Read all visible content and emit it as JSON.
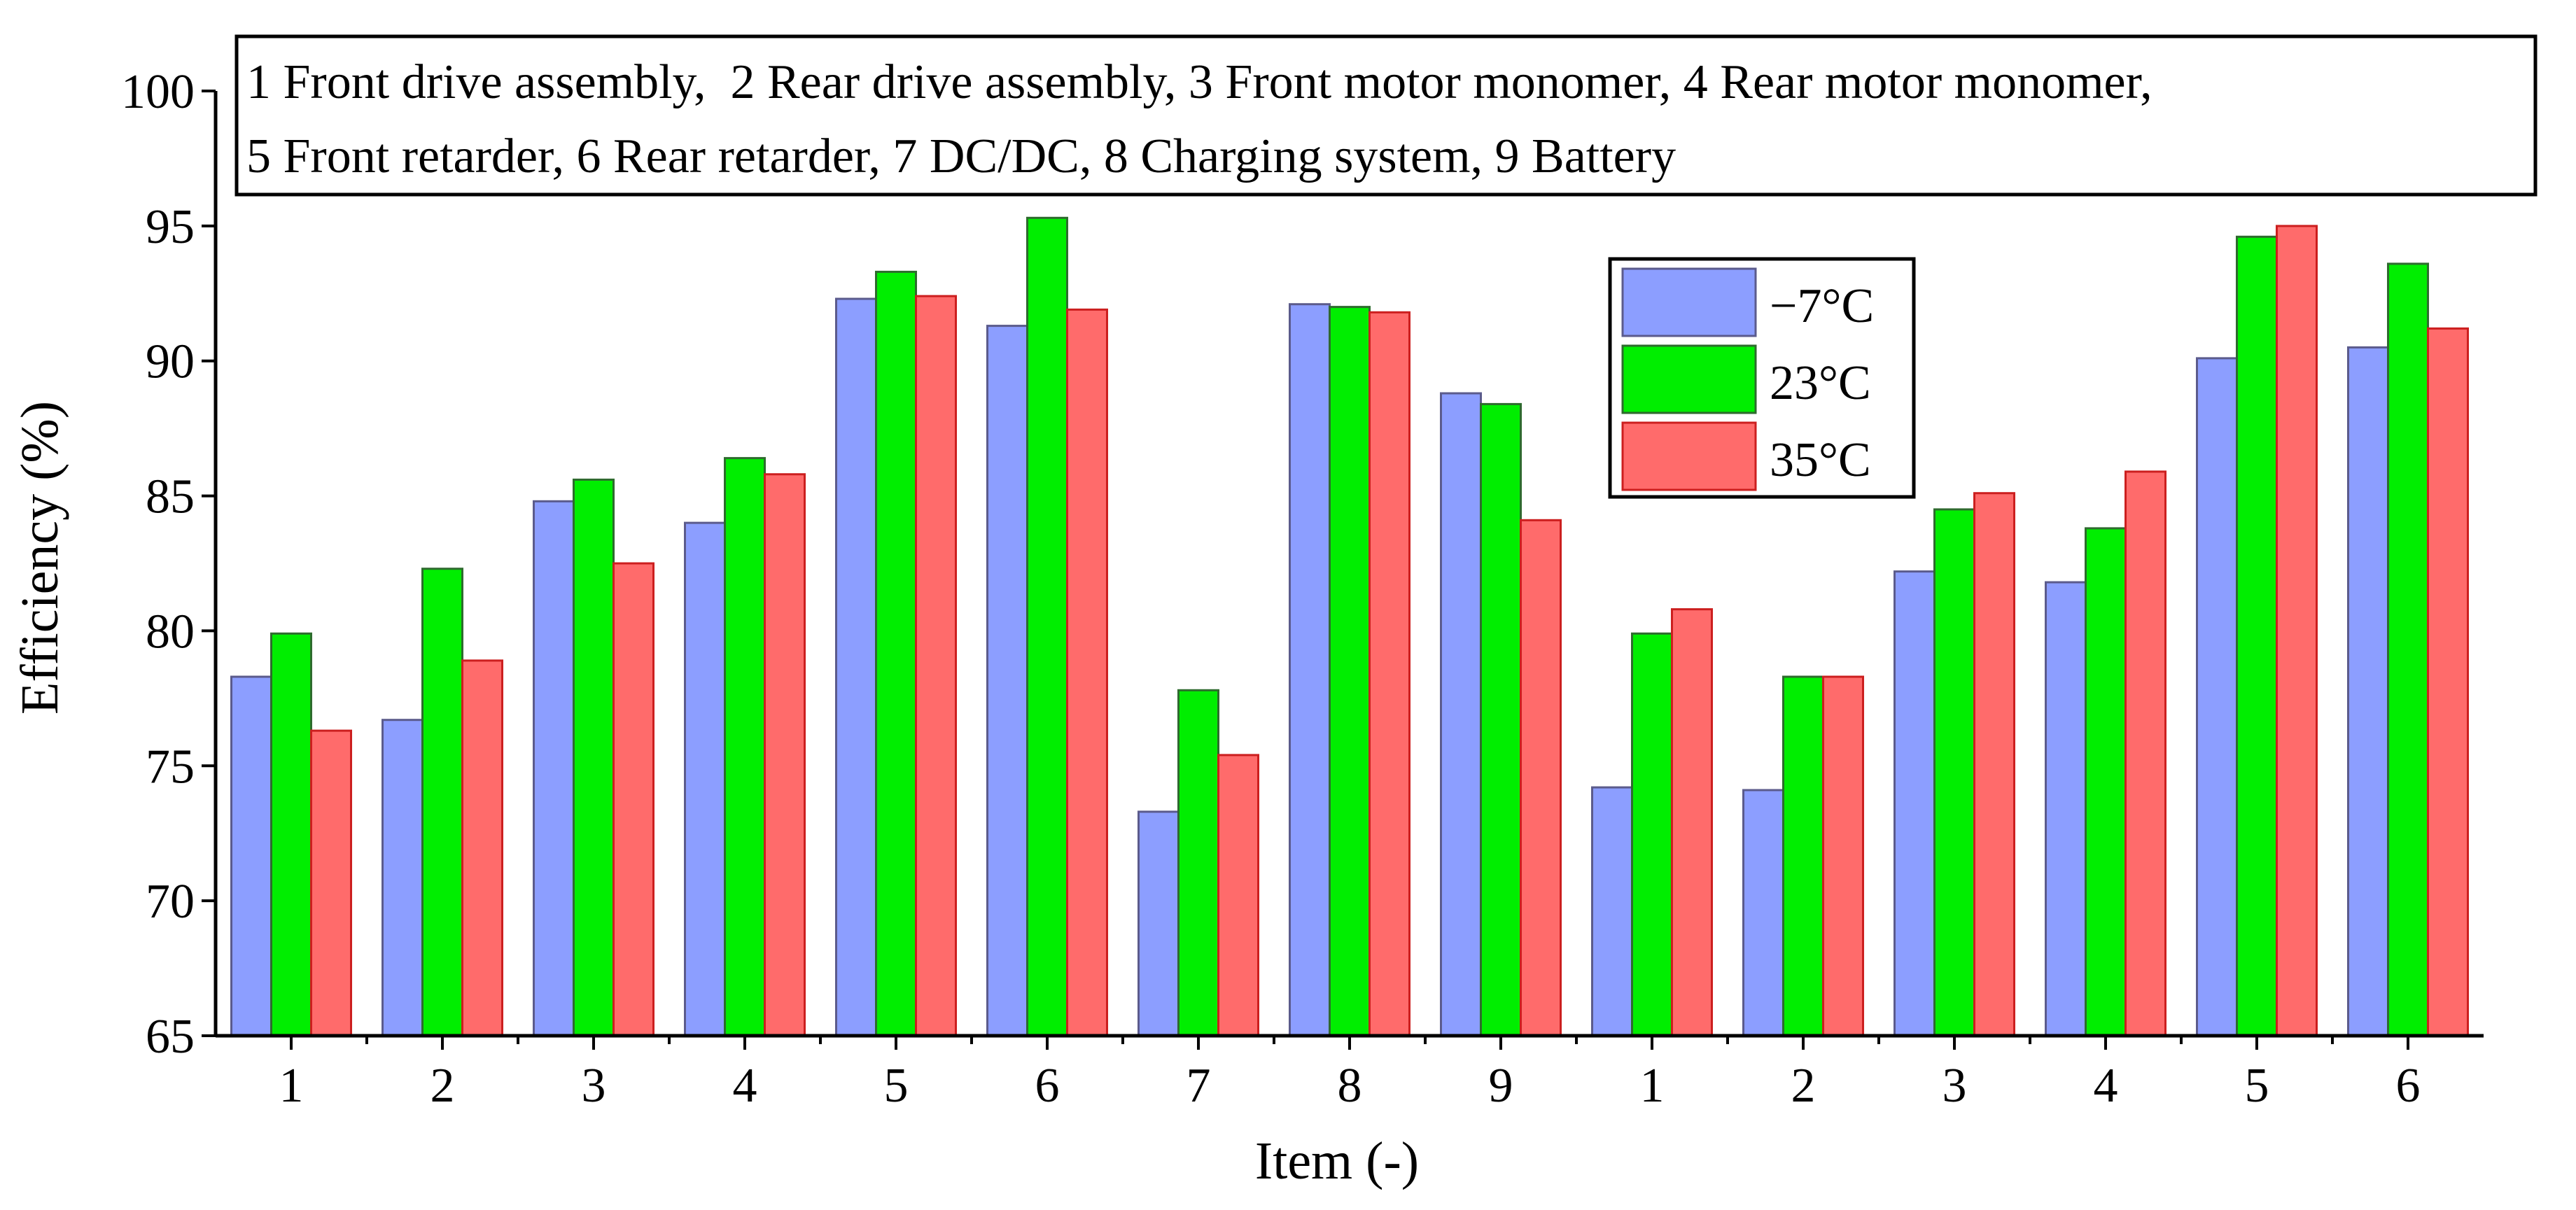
{
  "chart_data": {
    "type": "bar",
    "title": "",
    "xlabel": "Item (-)",
    "ylabel": "Efficiency (%)",
    "ylim": [
      65,
      100
    ],
    "yticks": [
      65,
      70,
      75,
      80,
      85,
      90,
      95,
      100
    ],
    "grid": false,
    "legend_position": "top-center-right",
    "annotation_lines": [
      "1 Front drive assembly,  2 Rear drive assembly, 3 Front motor monomer, 4 Rear motor monomer,",
      "5 Front retarder, 6 Rear retarder, 7 DC/DC, 8 Charging system, 9 Battery"
    ],
    "categories": [
      "1",
      "2",
      "3",
      "4",
      "5",
      "6",
      "7",
      "8",
      "9",
      "1",
      "2",
      "3",
      "4",
      "5",
      "6"
    ],
    "series": [
      {
        "name": "−7°C",
        "color": "#8c9eff",
        "stroke": "#5b5b8c",
        "values": [
          78.3,
          76.7,
          84.8,
          84.0,
          92.3,
          91.3,
          73.3,
          92.1,
          88.8,
          74.2,
          74.1,
          82.2,
          81.8,
          90.1,
          90.5
        ]
      },
      {
        "name": "23°C",
        "color": "#00ee00",
        "stroke": "#2e6b2e",
        "values": [
          79.9,
          82.3,
          85.6,
          86.4,
          93.3,
          95.3,
          77.8,
          92.0,
          88.4,
          79.9,
          78.3,
          84.5,
          83.8,
          94.6,
          93.6
        ]
      },
      {
        "name": "35°C",
        "color": "#ff6b6b",
        "stroke": "#cc1f1f",
        "values": [
          76.3,
          78.9,
          82.5,
          85.8,
          92.4,
          91.9,
          75.4,
          91.8,
          84.1,
          80.8,
          78.3,
          85.1,
          85.9,
          95.0,
          91.2
        ]
      }
    ]
  }
}
